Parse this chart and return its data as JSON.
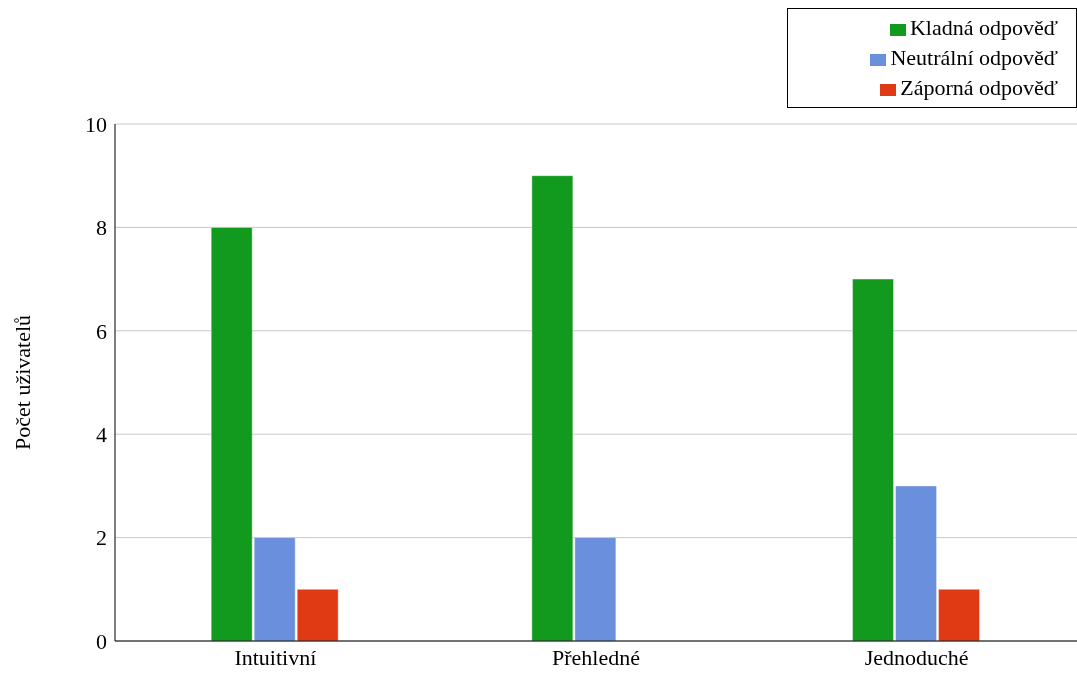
{
  "chart_data": {
    "type": "bar",
    "ylabel": "Počet uživatelů",
    "categories": [
      "Intuitivní",
      "Přehledné",
      "Jednoduché"
    ],
    "series": [
      {
        "name": "Kladná odpověď",
        "color": "#129a1e",
        "values": [
          8,
          9,
          7
        ]
      },
      {
        "name": "Neutrální odpověď",
        "color": "#6a8fdc",
        "values": [
          2,
          2,
          3
        ]
      },
      {
        "name": "Záporná odpověď",
        "color": "#e03a14",
        "values": [
          1,
          0,
          1
        ]
      }
    ],
    "ylim": [
      0,
      10
    ],
    "yticks": [
      0,
      2,
      4,
      6,
      8,
      10
    ],
    "grid": "y",
    "legend": "top right"
  }
}
